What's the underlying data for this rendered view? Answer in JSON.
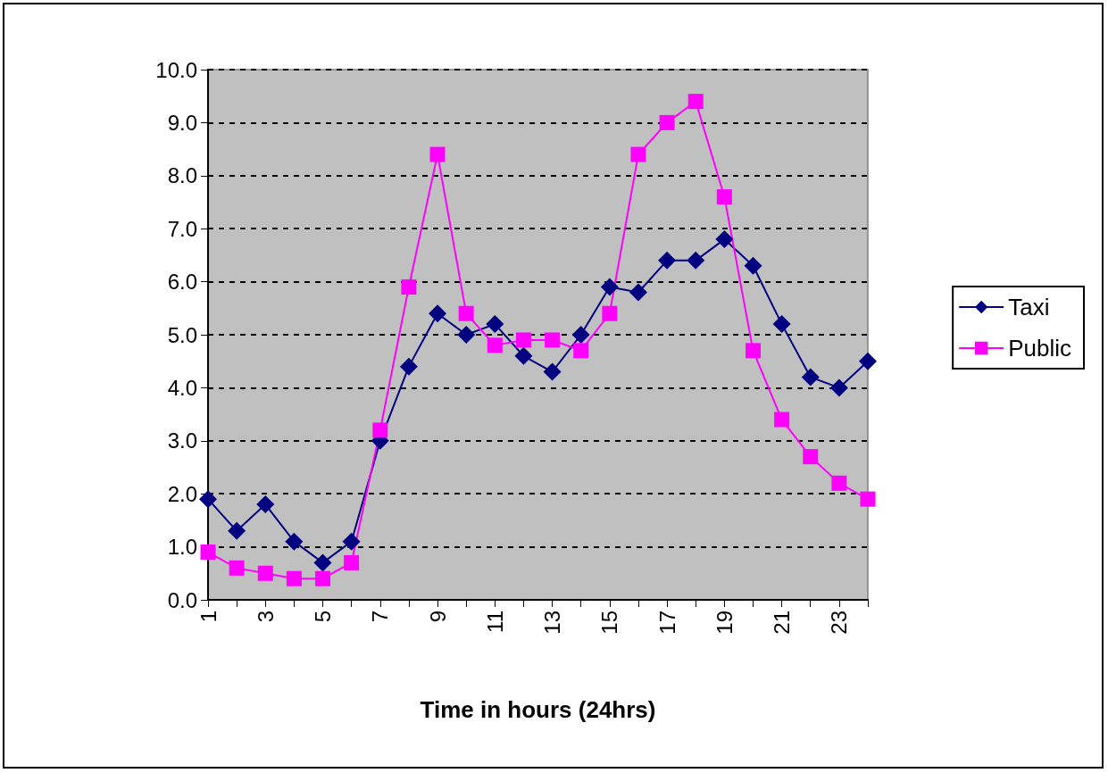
{
  "chart_data": {
    "type": "line",
    "xlabel": "Time in hours (24hrs)",
    "categories": [
      "1",
      null,
      "3",
      null,
      "5",
      null,
      "7",
      null,
      "9",
      null,
      "11",
      null,
      "13",
      null,
      "15",
      null,
      "17",
      null,
      "19",
      null,
      "21",
      null,
      "23",
      null
    ],
    "series": [
      {
        "name": "Taxi",
        "color": "#000080",
        "marker": "diamond",
        "values": [
          1.9,
          1.3,
          1.8,
          1.1,
          0.7,
          1.1,
          3.0,
          4.4,
          5.4,
          5.0,
          5.2,
          4.6,
          4.3,
          5.0,
          5.9,
          5.8,
          6.4,
          6.4,
          6.8,
          6.3,
          5.2,
          4.2,
          4.0,
          4.5
        ]
      },
      {
        "name": "Public",
        "color": "#ff00ff",
        "marker": "square",
        "values": [
          0.9,
          0.6,
          0.5,
          0.4,
          0.4,
          0.7,
          3.2,
          5.9,
          8.4,
          5.4,
          4.8,
          4.9,
          4.9,
          4.7,
          5.4,
          8.4,
          9.0,
          9.4,
          7.6,
          4.7,
          3.4,
          2.7,
          2.2,
          1.9
        ]
      }
    ],
    "ylim": [
      0,
      10
    ],
    "yticks": [
      {
        "value": 0,
        "label": "0.0"
      },
      {
        "value": 1,
        "label": "1.0"
      },
      {
        "value": 2,
        "label": "2.0"
      },
      {
        "value": 3,
        "label": "3.0"
      },
      {
        "value": 4,
        "label": "4.0"
      },
      {
        "value": 5,
        "label": "5.0"
      },
      {
        "value": 6,
        "label": "6.0"
      },
      {
        "value": 7,
        "label": "7.0"
      },
      {
        "value": 8,
        "label": "8.0"
      },
      {
        "value": 9,
        "label": "9.0"
      },
      {
        "value": 10,
        "label": "10.0"
      }
    ],
    "grid": "y",
    "legend": "right",
    "line_style": "solid"
  }
}
